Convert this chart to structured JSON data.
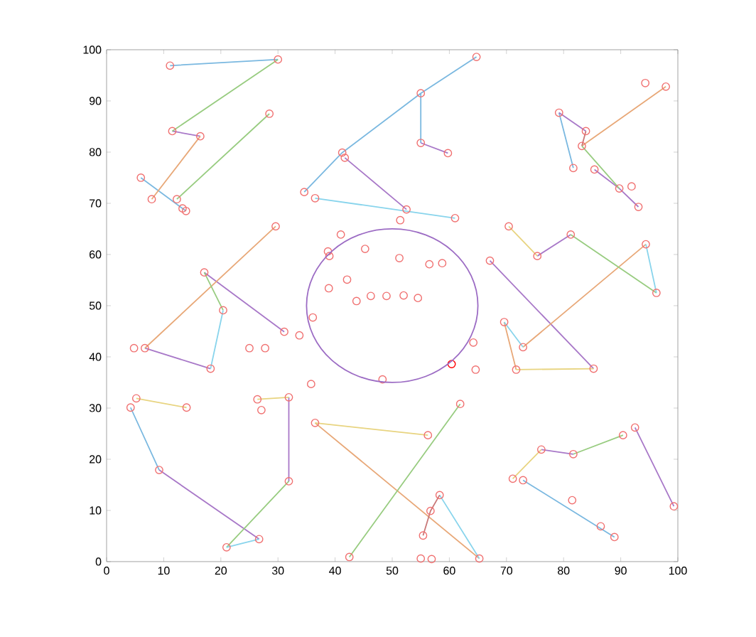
{
  "chart_data": {
    "type": "scatter",
    "xlim": [
      0,
      100
    ],
    "ylim": [
      0,
      100
    ],
    "xticks": [
      0,
      10,
      20,
      30,
      40,
      50,
      60,
      70,
      80,
      90,
      100
    ],
    "yticks": [
      0,
      10,
      20,
      30,
      40,
      50,
      60,
      70,
      80,
      90,
      100
    ],
    "grid": false,
    "series": [
      {
        "type": "line",
        "marker": "none",
        "line_style": "solid",
        "color": "#7ab8e0",
        "x": [
          11.1,
          30,
          null,
          6.0,
          13.9,
          null,
          34.6,
          41.25,
          55,
          64.75,
          null,
          55,
          55,
          null,
          79.2,
          81.7,
          null,
          4.2,
          9.2,
          null,
          72.9,
          88.9
        ],
        "values": [
          96.9,
          98.1,
          null,
          75,
          68.5,
          null,
          72.2,
          79.9,
          91.5,
          98.6,
          null,
          91.5,
          81.8,
          null,
          87.7,
          76.9,
          null,
          30.1,
          17.9,
          null,
          15.9,
          4.8
        ]
      },
      {
        "type": "line",
        "marker": "none",
        "line_style": "solid",
        "color": "#a878c8",
        "x": [
          11.5,
          16.4,
          null,
          41.7,
          52.5,
          null,
          55,
          59.75,
          null,
          79.2,
          83.9,
          null,
          85.4,
          89.75,
          93.1,
          null,
          75.4,
          81.25,
          null,
          67.1,
          85.25,
          null,
          17.1,
          31.1,
          null,
          6.7,
          18.2,
          null,
          9.2,
          26.7,
          null,
          31.9,
          31.9,
          null,
          92.5,
          99.3,
          null,
          76.1,
          81.7
        ],
        "values": [
          84.1,
          83.1,
          null,
          78.9,
          68.8,
          null,
          81.8,
          79.8,
          null,
          87.7,
          84.1,
          null,
          76.6,
          72.9,
          69.3,
          null,
          59.7,
          63.9,
          null,
          58.8,
          37.7,
          null,
          56.5,
          44.9,
          null,
          41.7,
          37.7,
          null,
          17.9,
          4.4,
          null,
          15.7,
          32.1,
          null,
          26.2,
          10.8,
          null,
          21.9,
          21.0
        ]
      },
      {
        "type": "line",
        "marker": "none",
        "line_style": "solid",
        "color": "#e8a878",
        "x": [
          16.4,
          7.9,
          null,
          97.9,
          83.2,
          null,
          29.6,
          6.7,
          null,
          69.6,
          71.7,
          null,
          36.5,
          65.25,
          null,
          94.4,
          72.9
        ],
        "values": [
          83.1,
          70.8,
          null,
          92.8,
          81.2,
          null,
          65.5,
          41.7,
          null,
          46.8,
          37.5,
          null,
          27.1,
          0.6,
          null,
          62.0,
          41.9
        ]
      },
      {
        "type": "line",
        "marker": "none",
        "line_style": "solid",
        "color": "#e8d480",
        "x": [
          70.4,
          75.4,
          null,
          71.7,
          85.25,
          null,
          5.2,
          14,
          null,
          26.4,
          31.9,
          null,
          36.5,
          56.25,
          null,
          71.1,
          76.1
        ],
        "values": [
          65.5,
          59.7,
          null,
          37.5,
          37.7,
          null,
          31.9,
          30.1,
          null,
          31.7,
          32.1,
          null,
          27.1,
          24.7,
          null,
          16.2,
          21.9
        ]
      },
      {
        "type": "line",
        "marker": "none",
        "line_style": "solid",
        "color": "#98cc80",
        "x": [
          30,
          11.5,
          null,
          28.5,
          12.3,
          null,
          83.2,
          89.75,
          null,
          81.25,
          96.25,
          null,
          21,
          31.9,
          null,
          42.5,
          61.9,
          null,
          81.7,
          90.4,
          null,
          17.1,
          20.4
        ],
        "values": [
          98.1,
          84.1,
          null,
          87.5,
          70.8,
          null,
          81.2,
          72.9,
          null,
          63.9,
          52.5,
          null,
          2.8,
          15.7,
          null,
          0.9,
          30.8,
          null,
          21.0,
          24.7,
          null,
          56.5,
          49.1
        ]
      },
      {
        "type": "line",
        "marker": "none",
        "line_style": "solid",
        "color": "#88d4ec",
        "x": [
          36.5,
          61,
          null,
          18.2,
          20.4,
          null,
          26.7,
          21,
          null,
          58.3,
          65.25,
          null,
          69.6,
          72.9,
          null,
          94.4,
          96.25
        ],
        "values": [
          71,
          67.1,
          null,
          37.7,
          49.1,
          null,
          4.4,
          2.8,
          null,
          13,
          0.6,
          null,
          46.8,
          41.9,
          null,
          62.0,
          52.5
        ]
      },
      {
        "type": "line",
        "marker": "none",
        "line_style": "solid",
        "color": "#c87878",
        "x": [
          83.9,
          83.2,
          null,
          58.3,
          56.7,
          55.4
        ],
        "values": [
          84.1,
          81.2,
          null,
          13,
          9.9,
          5.1
        ]
      },
      {
        "marker": "circle",
        "color": "#f07070",
        "x": [
          11.1,
          30,
          11.5,
          16.4,
          28.5,
          6.0,
          7.9,
          12.3,
          13.3,
          13.9,
          41.25,
          41.7,
          34.6,
          36.5,
          29.6,
          17.1,
          41,
          38.75,
          39,
          45.25,
          42.1,
          38.9,
          43.75,
          46.25,
          49,
          52,
          54.5,
          51.25,
          56.5,
          58.75,
          64.75,
          55,
          55,
          59.75,
          94.3,
          97.9,
          79.2,
          83.9,
          83.2,
          81.7,
          85.4,
          89.75,
          91.9,
          93.1,
          52.5,
          51.4,
          61,
          70.4,
          75.4,
          81.25,
          94.4,
          96.25,
          67.1,
          69.6,
          72.9,
          71.7,
          85.25,
          64.2,
          64.6,
          48.3,
          61.9,
          56.25,
          76.1,
          81.7,
          90.4,
          92.5,
          99.3,
          71.1,
          72.9,
          81.5,
          86.5,
          88.9,
          58.3,
          56.7,
          55.4,
          55,
          56.9,
          65.25,
          4.8,
          6.7,
          20.4,
          18.2,
          25,
          27.75,
          31.1,
          33.75,
          36.1,
          35.8,
          5.2,
          4.2,
          14,
          26.4,
          27.1,
          31.9,
          36.5,
          9.2,
          31.9,
          26.7,
          21,
          42.5
        ],
        "values": [
          96.9,
          98.1,
          84.1,
          83.1,
          87.5,
          75,
          70.8,
          70.8,
          69,
          68.5,
          79.9,
          78.9,
          72.2,
          71,
          65.5,
          56.5,
          63.9,
          60.6,
          59.7,
          61.1,
          55.1,
          53.4,
          50.9,
          51.9,
          51.9,
          52,
          51.5,
          59.3,
          58.1,
          58.3,
          98.6,
          91.5,
          81.8,
          79.8,
          93.5,
          92.8,
          87.7,
          84.1,
          81.2,
          76.9,
          76.6,
          72.9,
          73.3,
          69.3,
          68.8,
          66.7,
          67.1,
          65.5,
          59.7,
          63.9,
          62,
          52.5,
          58.8,
          46.8,
          41.9,
          37.5,
          37.7,
          42.8,
          37.5,
          35.6,
          30.8,
          24.7,
          21.9,
          21,
          24.7,
          26.2,
          10.8,
          16.2,
          15.9,
          12,
          6.9,
          4.8,
          13,
          9.9,
          5.1,
          0.6,
          0.5,
          0.6,
          41.7,
          41.7,
          49.1,
          37.7,
          41.7,
          41.7,
          44.9,
          44.2,
          47.7,
          34.7,
          31.9,
          30.1,
          30.1,
          31.7,
          29.6,
          32.1,
          27.1,
          17.9,
          15.7,
          4.4,
          2.8,
          0.9
        ]
      },
      {
        "marker": "circle",
        "color": "#ff0000",
        "x": [
          60.4
        ],
        "values": [
          38.6
        ]
      }
    ]
  }
}
